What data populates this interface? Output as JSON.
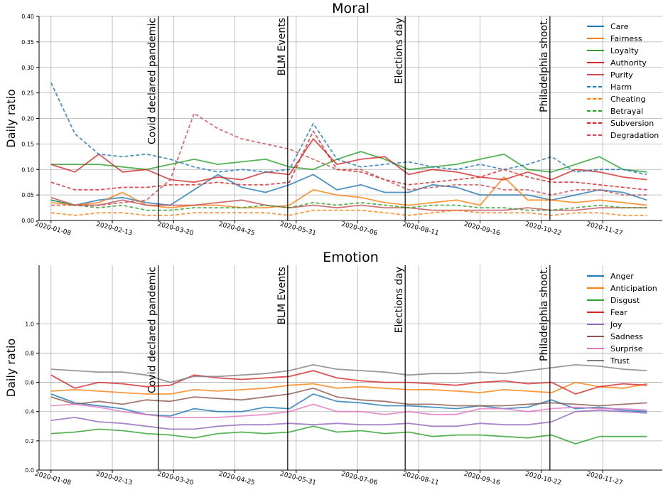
{
  "chart_data": [
    {
      "type": "line",
      "title": "Moral",
      "ylabel": "Daily ratio",
      "xlabel": "",
      "ylim": [
        0,
        0.4
      ],
      "yticks": [
        0.0,
        0.05,
        0.1,
        0.15,
        0.2,
        0.25,
        0.3,
        0.35,
        0.4
      ],
      "ytick_labels": [
        "0.00",
        "0.05",
        "0.10",
        "0.15",
        "0.20",
        "0.25",
        "0.30",
        "0.35",
        "0.40"
      ],
      "xlim": [
        "2020-01-01",
        "2021-01-01"
      ],
      "xticks": [
        "2020-01-08",
        "2020-02-13",
        "2020-03-20",
        "2020-04-25",
        "2020-05-31",
        "2020-07-06",
        "2020-08-11",
        "2020-09-16",
        "2020-10-22",
        "2020-11-27"
      ],
      "grid": true,
      "legend_position": "top-right",
      "events": [
        {
          "date": "2020-03-11",
          "label": "Covid declared pandemic"
        },
        {
          "date": "2020-05-26",
          "label": "BLM Events"
        },
        {
          "date": "2020-08-03",
          "label": "Elections day"
        },
        {
          "date": "2020-10-27",
          "label": "Philadelphia shoot."
        }
      ],
      "x": [
        "2020-01-08",
        "2020-01-22",
        "2020-02-05",
        "2020-02-19",
        "2020-03-04",
        "2020-03-18",
        "2020-04-01",
        "2020-04-15",
        "2020-04-29",
        "2020-05-13",
        "2020-05-27",
        "2020-06-10",
        "2020-06-24",
        "2020-07-08",
        "2020-07-22",
        "2020-08-05",
        "2020-08-19",
        "2020-09-02",
        "2020-09-16",
        "2020-09-30",
        "2020-10-14",
        "2020-10-28",
        "2020-11-11",
        "2020-11-25",
        "2020-12-09",
        "2020-12-23"
      ],
      "series": [
        {
          "name": "Care",
          "color": "#1f77b4",
          "dash": "solid",
          "values": [
            0.04,
            0.03,
            0.04,
            0.045,
            0.035,
            0.03,
            0.06,
            0.09,
            0.065,
            0.055,
            0.07,
            0.09,
            0.06,
            0.07,
            0.055,
            0.055,
            0.07,
            0.065,
            0.05,
            0.05,
            0.05,
            0.04,
            0.05,
            0.06,
            0.055,
            0.04
          ]
        },
        {
          "name": "Fairness",
          "color": "#ff7f0e",
          "dash": "solid",
          "values": [
            0.035,
            0.03,
            0.035,
            0.055,
            0.03,
            0.025,
            0.03,
            0.03,
            0.025,
            0.025,
            0.03,
            0.06,
            0.05,
            0.045,
            0.035,
            0.03,
            0.035,
            0.04,
            0.03,
            0.085,
            0.04,
            0.04,
            0.035,
            0.04,
            0.035,
            0.03
          ]
        },
        {
          "name": "Loyalty",
          "color": "#2ca02c",
          "dash": "solid",
          "values": [
            0.11,
            0.11,
            0.11,
            0.105,
            0.1,
            0.11,
            0.12,
            0.11,
            0.115,
            0.12,
            0.105,
            0.1,
            0.12,
            0.135,
            0.12,
            0.1,
            0.105,
            0.11,
            0.12,
            0.13,
            0.1,
            0.095,
            0.11,
            0.125,
            0.1,
            0.095
          ]
        },
        {
          "name": "Authority",
          "color": "#d62728",
          "dash": "solid",
          "values": [
            0.11,
            0.095,
            0.13,
            0.095,
            0.1,
            0.08,
            0.075,
            0.085,
            0.08,
            0.095,
            0.09,
            0.16,
            0.11,
            0.12,
            0.125,
            0.09,
            0.1,
            0.095,
            0.085,
            0.08,
            0.095,
            0.08,
            0.1,
            0.095,
            0.085,
            0.08
          ]
        },
        {
          "name": "Purity",
          "color": "#c44e52",
          "dash": "solid",
          "values": [
            0.045,
            0.03,
            0.03,
            0.04,
            0.03,
            0.03,
            0.03,
            0.035,
            0.04,
            0.03,
            0.025,
            0.03,
            0.025,
            0.03,
            0.025,
            0.025,
            0.02,
            0.02,
            0.02,
            0.02,
            0.025,
            0.02,
            0.02,
            0.025,
            0.025,
            0.025
          ]
        },
        {
          "name": "Harm",
          "color": "#1f77b4",
          "dash": "dashed",
          "values": [
            0.27,
            0.17,
            0.13,
            0.125,
            0.13,
            0.12,
            0.105,
            0.095,
            0.1,
            0.095,
            0.1,
            0.19,
            0.12,
            0.105,
            0.11,
            0.115,
            0.105,
            0.1,
            0.11,
            0.1,
            0.11,
            0.125,
            0.095,
            0.1,
            0.1,
            0.09
          ]
        },
        {
          "name": "Cheating",
          "color": "#ff7f0e",
          "dash": "dashed",
          "values": [
            0.015,
            0.01,
            0.015,
            0.015,
            0.01,
            0.01,
            0.015,
            0.015,
            0.015,
            0.015,
            0.01,
            0.02,
            0.02,
            0.02,
            0.015,
            0.01,
            0.015,
            0.02,
            0.015,
            0.015,
            0.015,
            0.01,
            0.015,
            0.015,
            0.01,
            0.01
          ]
        },
        {
          "name": "Betrayal",
          "color": "#2ca02c",
          "dash": "dashed",
          "values": [
            0.04,
            0.03,
            0.025,
            0.03,
            0.02,
            0.02,
            0.025,
            0.025,
            0.025,
            0.03,
            0.025,
            0.035,
            0.03,
            0.035,
            0.03,
            0.025,
            0.03,
            0.03,
            0.025,
            0.025,
            0.02,
            0.02,
            0.025,
            0.03,
            0.025,
            0.025
          ]
        },
        {
          "name": "Subversion",
          "color": "#d62728",
          "dash": "dashed",
          "values": [
            0.075,
            0.06,
            0.06,
            0.065,
            0.065,
            0.07,
            0.07,
            0.075,
            0.07,
            0.07,
            0.075,
            0.175,
            0.1,
            0.095,
            0.08,
            0.07,
            0.075,
            0.08,
            0.085,
            0.1,
            0.085,
            0.075,
            0.075,
            0.07,
            0.065,
            0.06
          ]
        },
        {
          "name": "Degradation",
          "color": "#c44e52",
          "dash": "dashed",
          "values": [
            0.03,
            0.03,
            0.03,
            0.035,
            0.04,
            0.08,
            0.21,
            0.18,
            0.16,
            0.15,
            0.14,
            0.12,
            0.1,
            0.1,
            0.08,
            0.06,
            0.065,
            0.07,
            0.07,
            0.06,
            0.06,
            0.05,
            0.06,
            0.06,
            0.05,
            0.05
          ]
        }
      ]
    },
    {
      "type": "line",
      "title": "Emotion",
      "ylabel": "Daily ratio",
      "xlabel": "",
      "ylim": [
        0,
        1.4
      ],
      "yticks": [
        0.0,
        0.2,
        0.4,
        0.6,
        0.8,
        1.0
      ],
      "ytick_labels": [
        "0.0",
        "0.2",
        "0.4",
        "0.6",
        "0.8",
        "1.0"
      ],
      "xlim": [
        "2020-01-01",
        "2021-01-01"
      ],
      "xticks": [
        "2020-01-08",
        "2020-02-13",
        "2020-03-20",
        "2020-04-25",
        "2020-05-31",
        "2020-07-06",
        "2020-08-11",
        "2020-09-16",
        "2020-10-22",
        "2020-11-27"
      ],
      "grid": true,
      "legend_position": "top-right",
      "events": [
        {
          "date": "2020-03-11",
          "label": "Covid declared pandemic"
        },
        {
          "date": "2020-05-26",
          "label": "BLM Events"
        },
        {
          "date": "2020-08-03",
          "label": "Elections day"
        },
        {
          "date": "2020-10-27",
          "label": "Philadelphia shoot."
        }
      ],
      "x": [
        "2020-01-08",
        "2020-01-22",
        "2020-02-05",
        "2020-02-19",
        "2020-03-04",
        "2020-03-18",
        "2020-04-01",
        "2020-04-15",
        "2020-04-29",
        "2020-05-13",
        "2020-05-27",
        "2020-06-10",
        "2020-06-24",
        "2020-07-08",
        "2020-07-22",
        "2020-08-05",
        "2020-08-19",
        "2020-09-02",
        "2020-09-16",
        "2020-09-30",
        "2020-10-14",
        "2020-10-28",
        "2020-11-11",
        "2020-11-25",
        "2020-12-09",
        "2020-12-23"
      ],
      "series": [
        {
          "name": "Anger",
          "color": "#1f77b4",
          "values": [
            0.52,
            0.46,
            0.44,
            0.42,
            0.38,
            0.37,
            0.42,
            0.4,
            0.4,
            0.43,
            0.42,
            0.52,
            0.47,
            0.46,
            0.44,
            0.44,
            0.43,
            0.42,
            0.44,
            0.42,
            0.43,
            0.48,
            0.42,
            0.43,
            0.41,
            0.4
          ]
        },
        {
          "name": "Anticipation",
          "color": "#ff7f0e",
          "values": [
            0.54,
            0.55,
            0.54,
            0.53,
            0.52,
            0.52,
            0.55,
            0.54,
            0.55,
            0.56,
            0.58,
            0.59,
            0.56,
            0.57,
            0.56,
            0.55,
            0.55,
            0.54,
            0.53,
            0.55,
            0.54,
            0.53,
            0.6,
            0.57,
            0.56,
            0.59
          ]
        },
        {
          "name": "Disgust",
          "color": "#2ca02c",
          "values": [
            0.25,
            0.26,
            0.28,
            0.27,
            0.25,
            0.24,
            0.22,
            0.25,
            0.26,
            0.25,
            0.26,
            0.3,
            0.26,
            0.27,
            0.25,
            0.26,
            0.23,
            0.24,
            0.24,
            0.23,
            0.22,
            0.24,
            0.18,
            0.23,
            0.23,
            0.23
          ]
        },
        {
          "name": "Fear",
          "color": "#d62728",
          "values": [
            0.65,
            0.56,
            0.6,
            0.59,
            0.57,
            0.58,
            0.65,
            0.63,
            0.62,
            0.63,
            0.64,
            0.68,
            0.63,
            0.61,
            0.6,
            0.6,
            0.59,
            0.58,
            0.6,
            0.61,
            0.59,
            0.6,
            0.52,
            0.57,
            0.59,
            0.58
          ]
        },
        {
          "name": "Joy",
          "color": "#9467bd",
          "values": [
            0.34,
            0.36,
            0.33,
            0.32,
            0.3,
            0.28,
            0.28,
            0.3,
            0.31,
            0.31,
            0.32,
            0.31,
            0.32,
            0.31,
            0.31,
            0.32,
            0.3,
            0.3,
            0.32,
            0.31,
            0.31,
            0.33,
            0.4,
            0.41,
            0.4,
            0.39
          ]
        },
        {
          "name": "Sadness",
          "color": "#8c564b",
          "values": [
            0.5,
            0.45,
            0.47,
            0.45,
            0.48,
            0.47,
            0.5,
            0.49,
            0.48,
            0.5,
            0.52,
            0.56,
            0.5,
            0.48,
            0.47,
            0.45,
            0.45,
            0.44,
            0.44,
            0.44,
            0.45,
            0.46,
            0.45,
            0.44,
            0.45,
            0.46
          ]
        },
        {
          "name": "Surprise",
          "color": "#e377c2",
          "values": [
            0.44,
            0.45,
            0.43,
            0.4,
            0.38,
            0.36,
            0.36,
            0.36,
            0.37,
            0.38,
            0.4,
            0.45,
            0.4,
            0.4,
            0.38,
            0.4,
            0.38,
            0.38,
            0.42,
            0.42,
            0.4,
            0.42,
            0.43,
            0.42,
            0.42,
            0.41
          ]
        },
        {
          "name": "Trust",
          "color": "#7f7f7f",
          "values": [
            0.69,
            0.68,
            0.67,
            0.67,
            0.65,
            0.6,
            0.64,
            0.64,
            0.65,
            0.66,
            0.68,
            0.72,
            0.69,
            0.68,
            0.67,
            0.65,
            0.66,
            0.66,
            0.67,
            0.66,
            0.68,
            0.7,
            0.72,
            0.71,
            0.69,
            0.68
          ]
        }
      ]
    }
  ]
}
